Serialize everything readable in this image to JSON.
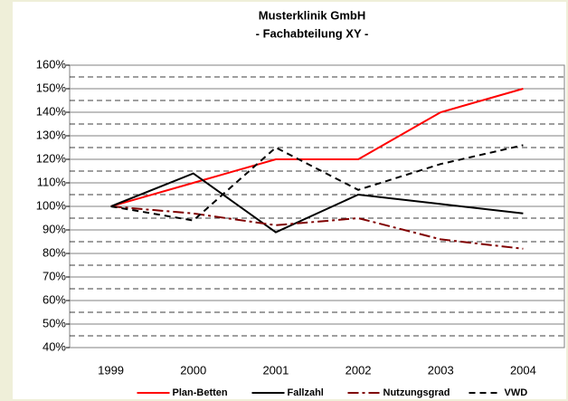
{
  "chart_data": {
    "type": "line",
    "title": "Musterklinik GmbH",
    "subtitle": "- Fachabteilung XY -",
    "categories": [
      "1999",
      "2000",
      "2001",
      "2002",
      "2003",
      "2004"
    ],
    "series": [
      {
        "name": "Plan-Betten",
        "color": "#ff0000",
        "dash": "solid",
        "values": [
          100,
          110,
          120,
          120,
          140,
          150
        ]
      },
      {
        "name": "Fallzahl",
        "color": "#000000",
        "dash": "solid",
        "values": [
          100,
          114,
          89,
          105,
          101,
          97
        ]
      },
      {
        "name": "Nutzungsgrad",
        "color": "#800000",
        "dash": "dashdot",
        "values": [
          100,
          97,
          92,
          95,
          86,
          82
        ]
      },
      {
        "name": "VWD",
        "color": "#000000",
        "dash": "dashed",
        "values": [
          100,
          94,
          125,
          107,
          118,
          126
        ]
      }
    ],
    "ylim": [
      40,
      160
    ],
    "yticks": [
      {
        "value": 40,
        "label": "40%"
      },
      {
        "value": 50,
        "label": "50%"
      },
      {
        "value": 60,
        "label": "60%"
      },
      {
        "value": 70,
        "label": "70%"
      },
      {
        "value": 80,
        "label": "80%"
      },
      {
        "value": 90,
        "label": "90%"
      },
      {
        "value": 100,
        "label": "100%"
      },
      {
        "value": 110,
        "label": "110%"
      },
      {
        "value": 120,
        "label": "120%"
      },
      {
        "value": 130,
        "label": "130%"
      },
      {
        "value": 140,
        "label": "140%"
      },
      {
        "value": 150,
        "label": "150%"
      },
      {
        "value": 160,
        "label": "160%"
      }
    ],
    "grid": true,
    "legend": "bottom"
  }
}
